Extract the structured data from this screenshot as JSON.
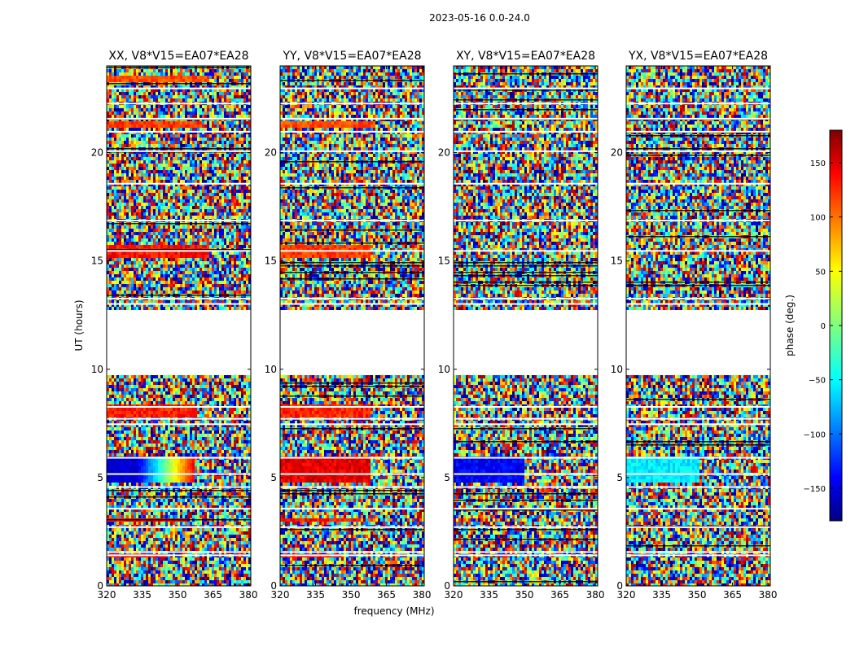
{
  "figure_title": "2023-05-16 0.0-24.0",
  "chart_data": {
    "type": "heatmap",
    "title": "2023-05-16 0.0-24.0",
    "xlabel": "frequency (MHz)",
    "ylabel": "UT (hours)",
    "xlim": [
      320,
      381
    ],
    "ylim": [
      0,
      24
    ],
    "x_ticks": [
      320,
      335,
      350,
      365,
      380
    ],
    "y_ticks": [
      0,
      5,
      10,
      15,
      20
    ],
    "no_data_range_hours": [
      9.8,
      12.8
    ],
    "panels": [
      {
        "title": "XX, V8*V15=EA07*EA28",
        "polarization": "XX"
      },
      {
        "title": "YY, V8*V15=EA07*EA28",
        "polarization": "YY"
      },
      {
        "title": "XY, V8*V15=EA07*EA28",
        "polarization": "XY"
      },
      {
        "title": "YX, V8*V15=EA07*EA28",
        "polarization": "YX"
      }
    ],
    "colorbar": {
      "label": "phase (deg.)",
      "range": [
        -180,
        180
      ],
      "ticks": [
        150,
        100,
        50,
        0,
        -50,
        -100,
        -150
      ],
      "tick_labels": [
        "150",
        "100",
        "50",
        "0",
        "−50",
        "−100",
        "−150"
      ],
      "colormap": "jet"
    }
  }
}
